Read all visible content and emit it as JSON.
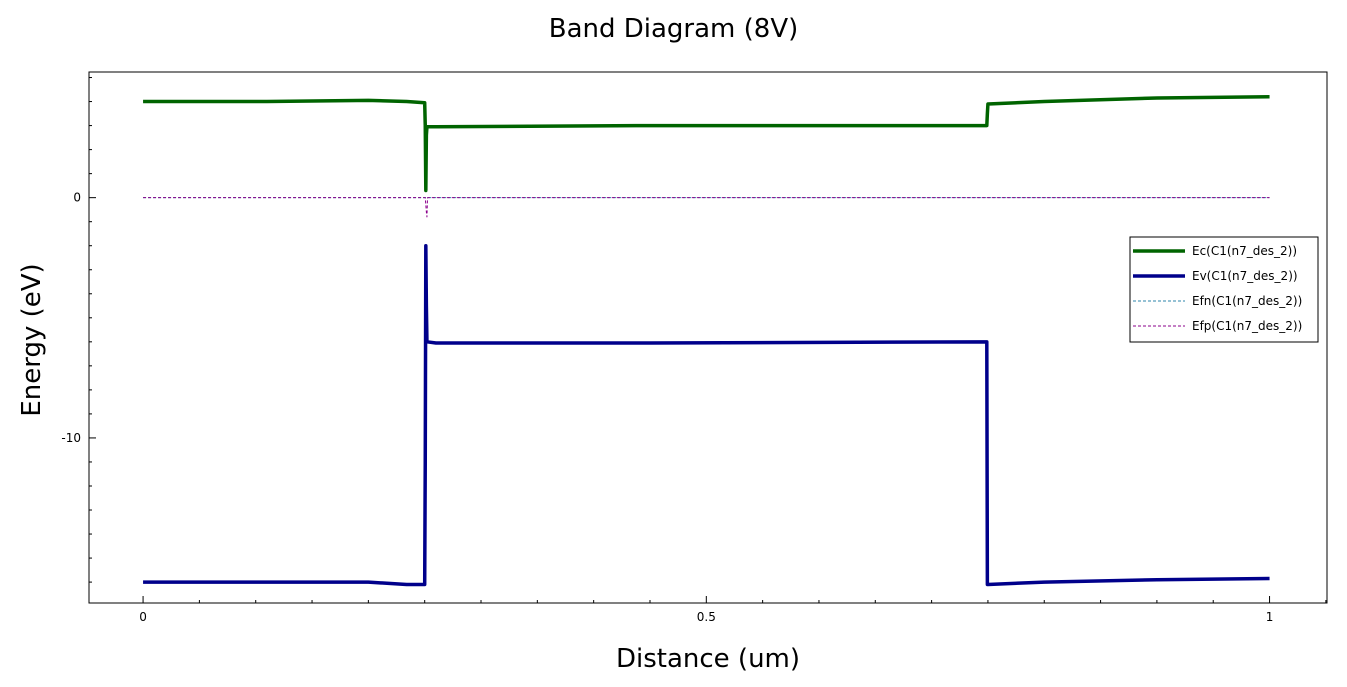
{
  "chart_data": {
    "type": "line",
    "title": "Band Diagram (8V)",
    "xlabel": "Distance (um)",
    "ylabel": "Energy (eV)",
    "xlim": [
      -0.048,
      1.051
    ],
    "ylim": [
      -16.87,
      5.23
    ],
    "x_ticks": [
      0,
      0.5,
      1
    ],
    "x_tick_labels": [
      "0",
      "0.5",
      "1"
    ],
    "y_ticks": [
      0,
      -10
    ],
    "y_tick_labels": [
      "0",
      "-10"
    ],
    "x_minor_step": 0.05,
    "y_minor_step": 1,
    "grid": false,
    "legend_position": "right",
    "series": [
      {
        "name": "Ec(C1(n7_des_2))",
        "color": "#006400",
        "style": "solid",
        "x": [
          0,
          0.11,
          0.2,
          0.234,
          0.25,
          0.2505,
          0.251,
          0.2515,
          0.252,
          0.26,
          0.45,
          0.749,
          0.7495,
          0.75,
          0.8,
          0.9,
          1.0
        ],
        "y": [
          4.0,
          4.0,
          4.05,
          4.0,
          3.95,
          3.0,
          0.3,
          2.6,
          2.95,
          2.95,
          3.0,
          3.0,
          3.5,
          3.9,
          4.0,
          4.15,
          4.2
        ]
      },
      {
        "name": "Ev(C1(n7_des_2))",
        "color": "#00008B",
        "style": "solid",
        "x": [
          0,
          0.2,
          0.234,
          0.25,
          0.2505,
          0.251,
          0.2515,
          0.252,
          0.26,
          0.45,
          0.749,
          0.7495,
          0.75,
          0.8,
          0.9,
          1.0
        ],
        "y": [
          -16.0,
          -16.0,
          -16.1,
          -16.1,
          -11.0,
          -2.0,
          -4.5,
          -6.0,
          -6.05,
          -6.05,
          -6.0,
          -16.1,
          -16.1,
          -16.0,
          -15.9,
          -15.85
        ]
      },
      {
        "name": "Efn(C1(n7_des_2))",
        "color": "#2E86AB",
        "style": "dashed",
        "x": [
          0,
          1.0
        ],
        "y": [
          0,
          0
        ]
      },
      {
        "name": "Efp(C1(n7_des_2))",
        "color": "#8B008B",
        "style": "dashed",
        "x": [
          0,
          0.2505,
          0.251,
          0.2515,
          0.252,
          0.2525,
          1.0
        ],
        "y": [
          0,
          0,
          -0.3,
          -0.6,
          -0.8,
          0,
          0
        ]
      }
    ]
  }
}
